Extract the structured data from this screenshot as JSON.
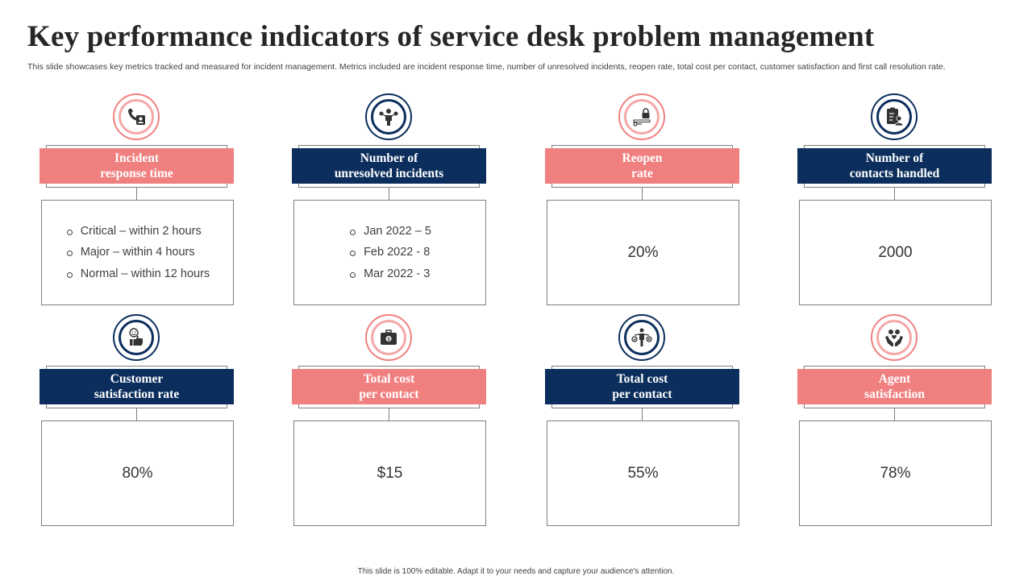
{
  "title": "Key performance indicators of service desk problem management",
  "subtitle": "This slide showcases key metrics tracked and measured for incident management. Metrics included are incident response time, number of unresolved incidents, reopen rate, total cost per contact, customer satisfaction and first call resolution rate.",
  "cards": [
    {
      "label": "Incident\nresponse time",
      "theme": "salmon",
      "icon": "phone-user-icon",
      "bullets": [
        "Critical – within 2 hours",
        "Major – within 4 hours",
        "Normal – within 12 hours"
      ]
    },
    {
      "label": "Number of\nunresolved incidents",
      "theme": "navy",
      "icon": "person-options-icon",
      "bullets": [
        "Jan 2022 – 5",
        "Feb 2022 - 8",
        "Mar 2022 - 3"
      ]
    },
    {
      "label": "Reopen\nrate",
      "theme": "salmon",
      "icon": "lock-key-icon",
      "value": "20%"
    },
    {
      "label": "Number of\ncontacts handled",
      "theme": "navy",
      "icon": "clipboard-user-icon",
      "value": "2000"
    },
    {
      "label": "Customer\nsatisfaction rate",
      "theme": "navy",
      "icon": "smile-thumbs-up-icon",
      "value": "80%"
    },
    {
      "label": "Total cost\nper contact",
      "theme": "salmon",
      "icon": "briefcase-money-icon",
      "value": "$15"
    },
    {
      "label": "Total cost\nper contact",
      "theme": "navy",
      "icon": "person-balance-icon",
      "value": "55%"
    },
    {
      "label": "Agent\nsatisfaction",
      "theme": "salmon",
      "icon": "hands-heart-icon",
      "value": "78%"
    }
  ],
  "colors": {
    "salmon": "#f08080",
    "navy": "#0b2e5c"
  },
  "footer": "This slide is 100% editable.  Adapt it to your needs and capture your audience's attention."
}
